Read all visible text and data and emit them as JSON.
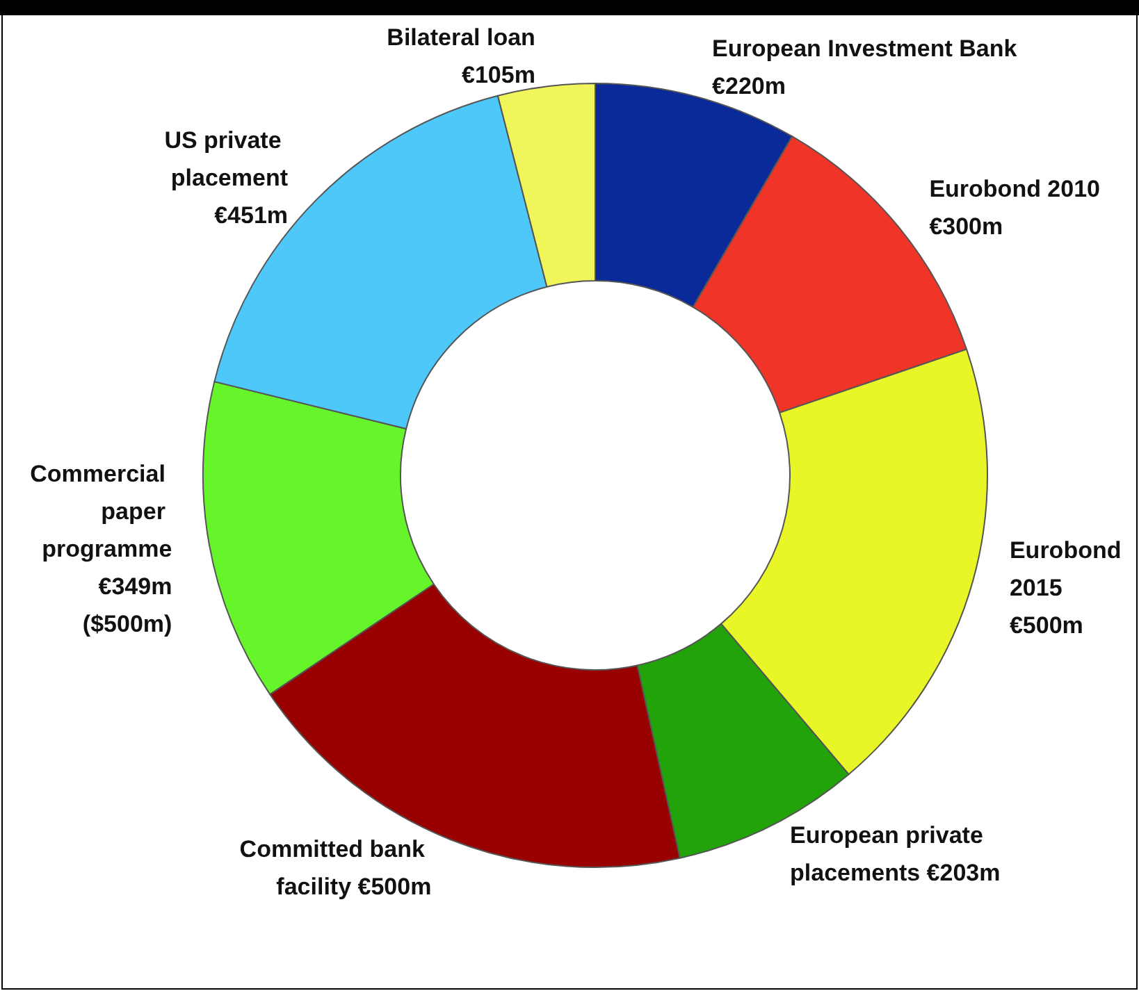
{
  "chart_data": {
    "type": "donut",
    "categories": [
      "European Investment Bank",
      "Eurobond 2010",
      "Eurobond 2015",
      "European private placements",
      "Committed bank facility",
      "Commercial paper programme",
      "US private placement",
      "Bilateral loan"
    ],
    "values": [
      220,
      300,
      500,
      203,
      500,
      349,
      451,
      105
    ],
    "value_labels": [
      "€220m",
      "€300m",
      "€500m",
      "€203m",
      "€500m",
      "€349m",
      "€451m",
      "€105m"
    ],
    "annotations": [
      {
        "text": "($500m)",
        "x": "Commercial paper programme"
      }
    ],
    "colors": [
      "#0a2a9a",
      "#f03428",
      "#e8f526",
      "#22a30a",
      "#990000",
      "#66f52a",
      "#4ec8f8",
      "#f0f55a"
    ]
  }
}
